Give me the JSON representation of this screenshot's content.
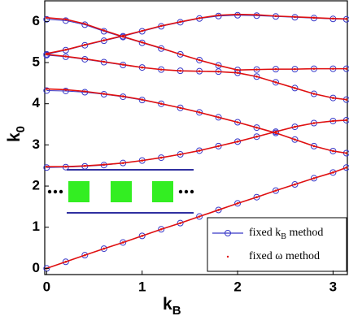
{
  "chart_data": {
    "type": "line",
    "xlabel": {
      "text": "k",
      "sub": "B"
    },
    "ylabel": {
      "text": "k",
      "sub": "0"
    },
    "xlim": [
      -0.02,
      3.15
    ],
    "ylim": [
      -0.15,
      6.5
    ],
    "xticks": [
      0,
      1,
      2,
      3
    ],
    "yticks": [
      0,
      1,
      2,
      3,
      4,
      5,
      6
    ],
    "x": [
      0,
      0.2,
      0.4,
      0.6,
      0.8,
      1.0,
      1.2,
      1.4,
      1.6,
      1.8,
      2.0,
      2.2,
      2.4,
      2.6,
      2.8,
      3.0,
      3.14
    ],
    "series": [
      {
        "name": {
          "text": "fixed k",
          "sub": "B",
          "tail": " method"
        },
        "color": "#3838c8",
        "marker": "circle",
        "bands": [
          [
            0,
            0.16,
            0.32,
            0.48,
            0.63,
            0.79,
            0.95,
            1.1,
            1.26,
            1.42,
            1.58,
            1.73,
            1.89,
            2.04,
            2.19,
            2.33,
            2.45
          ],
          [
            2.45,
            2.46,
            2.48,
            2.51,
            2.56,
            2.62,
            2.69,
            2.77,
            2.86,
            2.97,
            3.08,
            3.2,
            3.32,
            3.44,
            3.53,
            3.58,
            3.6
          ],
          [
            4.32,
            4.31,
            4.28,
            4.23,
            4.17,
            4.09,
            4.0,
            3.9,
            3.79,
            3.67,
            3.55,
            3.42,
            3.29,
            3.13,
            2.97,
            2.85,
            2.8
          ],
          [
            5.18,
            5.14,
            5.08,
            5.01,
            4.94,
            4.88,
            4.83,
            4.8,
            4.79,
            4.78,
            4.75,
            4.66,
            4.52,
            4.38,
            4.24,
            4.14,
            4.1
          ],
          [
            5.2,
            5.3,
            5.42,
            5.53,
            5.64,
            5.76,
            5.88,
            5.98,
            6.07,
            6.13,
            6.15,
            6.14,
            6.12,
            6.1,
            6.08,
            6.06,
            6.05
          ],
          [
            6.05,
            6.02,
            5.92,
            5.76,
            5.62,
            5.48,
            5.34,
            5.2,
            5.06,
            4.93,
            4.82,
            4.83,
            4.84,
            4.84,
            4.85,
            4.85,
            4.85
          ]
        ]
      },
      {
        "name": {
          "text": "fixed ω method"
        },
        "color": "#e01010",
        "marker": "dot",
        "bands": [
          [
            0,
            0.16,
            0.32,
            0.48,
            0.63,
            0.79,
            0.95,
            1.1,
            1.26,
            1.42,
            1.58,
            1.73,
            1.89,
            2.04,
            2.19,
            2.33,
            2.45
          ],
          [
            2.47,
            2.47,
            2.49,
            2.52,
            2.56,
            2.62,
            2.69,
            2.77,
            2.86,
            2.97,
            3.08,
            3.2,
            3.32,
            3.44,
            3.53,
            3.58,
            3.6
          ],
          [
            4.36,
            4.34,
            4.3,
            4.24,
            4.18,
            4.1,
            4.0,
            3.9,
            3.79,
            3.67,
            3.55,
            3.42,
            3.29,
            3.13,
            2.97,
            2.85,
            2.8
          ],
          [
            5.2,
            5.15,
            5.09,
            5.02,
            4.95,
            4.88,
            4.83,
            4.8,
            4.79,
            4.78,
            4.75,
            4.66,
            4.52,
            4.38,
            4.24,
            4.14,
            4.1
          ],
          [
            5.22,
            5.31,
            5.43,
            5.54,
            5.65,
            5.77,
            5.89,
            5.99,
            6.08,
            6.15,
            6.17,
            6.16,
            6.13,
            6.11,
            6.09,
            6.07,
            6.06
          ],
          [
            6.09,
            6.05,
            5.94,
            5.78,
            5.63,
            5.49,
            5.35,
            5.2,
            5.06,
            4.93,
            4.82,
            4.83,
            4.84,
            4.84,
            4.85,
            4.85,
            4.85
          ]
        ]
      }
    ]
  }
}
